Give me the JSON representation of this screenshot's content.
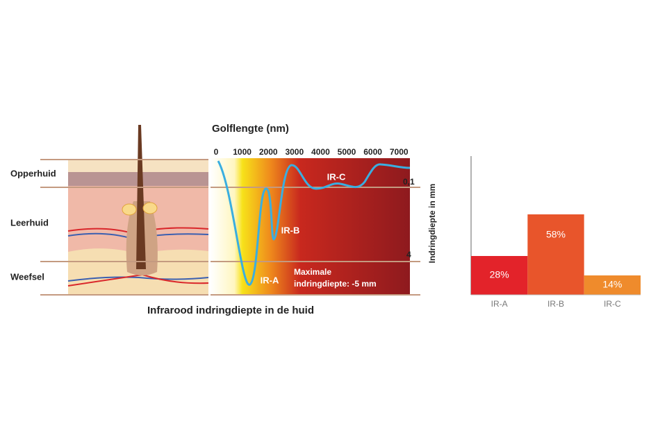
{
  "diagram": {
    "caption": "Infrarood indringdiepte in de huid",
    "x_axis_title": "Golflengte (nm)",
    "x_tick_labels": [
      "0",
      "1000",
      "2000",
      "3000",
      "4000",
      "5000",
      "6000",
      "7000"
    ],
    "y_axis_title": "Indringdiepte in mm",
    "depth_labels": [
      "0,1",
      "4"
    ],
    "layers": [
      "Opperhuid",
      "Leerhuid",
      "Weefsel"
    ],
    "bands": [
      "IR-A",
      "IR-B",
      "IR-C"
    ],
    "note": [
      "Maximale",
      "indringdiepte: -5 mm"
    ]
  },
  "chart_data": {
    "type": "bar",
    "categories": [
      "IR-A",
      "IR-B",
      "IR-C"
    ],
    "values": [
      28,
      58,
      14
    ],
    "value_labels": [
      "28%",
      "58%",
      "14%"
    ],
    "colors": [
      "#e3232a",
      "#e8552b",
      "#ef8b2c"
    ],
    "ylim": [
      0,
      100
    ]
  }
}
